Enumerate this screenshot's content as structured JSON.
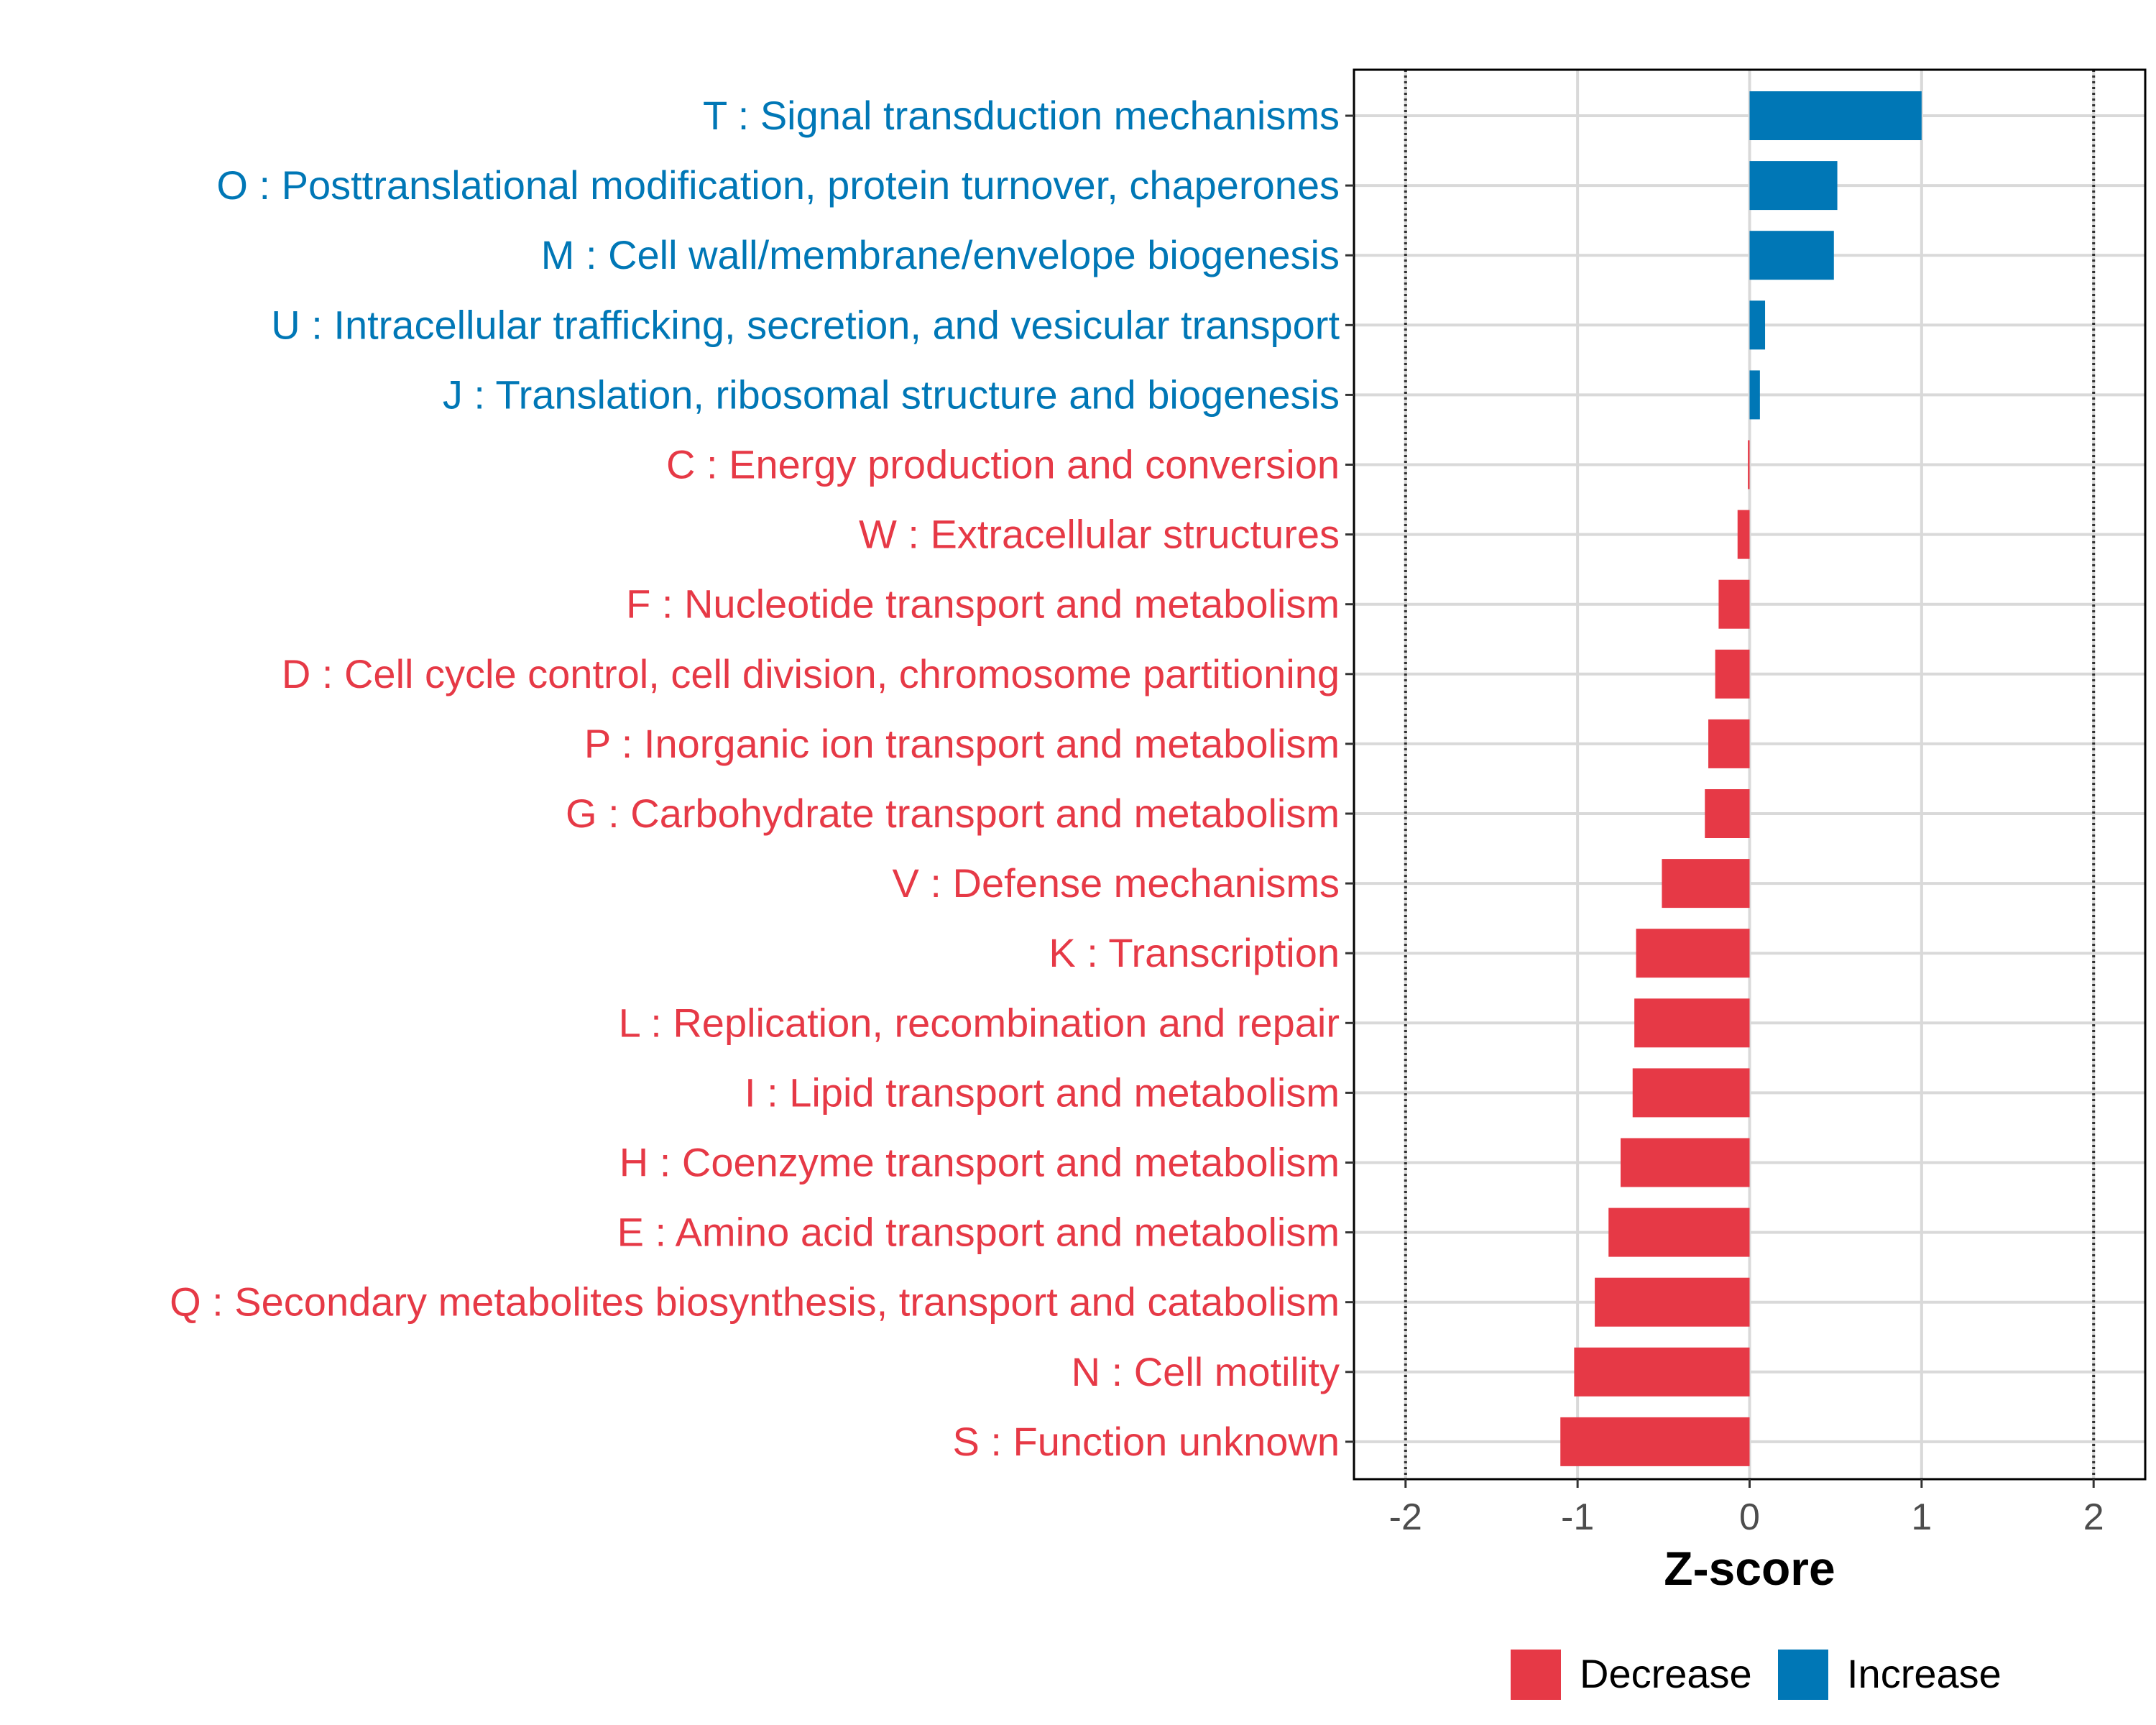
{
  "colors": {
    "decrease": "#e63946",
    "increase": "#0077b6",
    "gridline": "#d9d9d9",
    "panel_border": "#000000",
    "threshold_line": "#333333"
  },
  "chart_data": {
    "type": "bar",
    "orientation": "horizontal",
    "xlabel": "Z-score",
    "xlim": [
      -2.3,
      2.3
    ],
    "xticks": [
      -2,
      -1,
      0,
      1,
      2
    ],
    "xtick_labels": [
      "-2",
      "-1",
      "0",
      "1",
      "2"
    ],
    "threshold_lines": [
      -2,
      2
    ],
    "grid": true,
    "legend_position": "bottom",
    "legend": [
      {
        "label": "Decrease",
        "color_key": "decrease"
      },
      {
        "label": "Increase",
        "color_key": "increase"
      }
    ],
    "categories": [
      {
        "label": "T : Signal transduction mechanisms",
        "value": 1.0,
        "direction": "Increase"
      },
      {
        "label": "O : Posttranslational modification, protein turnover, chaperones",
        "value": 0.51,
        "direction": "Increase"
      },
      {
        "label": "M : Cell wall/membrane/envelope biogenesis",
        "value": 0.49,
        "direction": "Increase"
      },
      {
        "label": "U : Intracellular trafficking, secretion, and vesicular transport",
        "value": 0.09,
        "direction": "Increase"
      },
      {
        "label": "J : Translation, ribosomal structure and biogenesis",
        "value": 0.06,
        "direction": "Increase"
      },
      {
        "label": "C : Energy production and conversion",
        "value": -0.01,
        "direction": "Decrease"
      },
      {
        "label": "W : Extracellular structures",
        "value": -0.07,
        "direction": "Decrease"
      },
      {
        "label": "F : Nucleotide transport and metabolism",
        "value": -0.18,
        "direction": "Decrease"
      },
      {
        "label": "D : Cell cycle control, cell division, chromosome partitioning",
        "value": -0.2,
        "direction": "Decrease"
      },
      {
        "label": "P : Inorganic ion transport and metabolism",
        "value": -0.24,
        "direction": "Decrease"
      },
      {
        "label": "G : Carbohydrate transport and metabolism",
        "value": -0.26,
        "direction": "Decrease"
      },
      {
        "label": "V : Defense mechanisms",
        "value": -0.51,
        "direction": "Decrease"
      },
      {
        "label": "K : Transcription",
        "value": -0.66,
        "direction": "Decrease"
      },
      {
        "label": "L : Replication, recombination and repair",
        "value": -0.67,
        "direction": "Decrease"
      },
      {
        "label": "I : Lipid transport and metabolism",
        "value": -0.68,
        "direction": "Decrease"
      },
      {
        "label": "H : Coenzyme transport and metabolism",
        "value": -0.75,
        "direction": "Decrease"
      },
      {
        "label": "E : Amino acid transport and metabolism",
        "value": -0.82,
        "direction": "Decrease"
      },
      {
        "label": "Q : Secondary metabolites biosynthesis, transport and catabolism",
        "value": -0.9,
        "direction": "Decrease"
      },
      {
        "label": "N : Cell motility",
        "value": -1.02,
        "direction": "Decrease"
      },
      {
        "label": "S : Function unknown",
        "value": -1.1,
        "direction": "Decrease"
      }
    ]
  }
}
